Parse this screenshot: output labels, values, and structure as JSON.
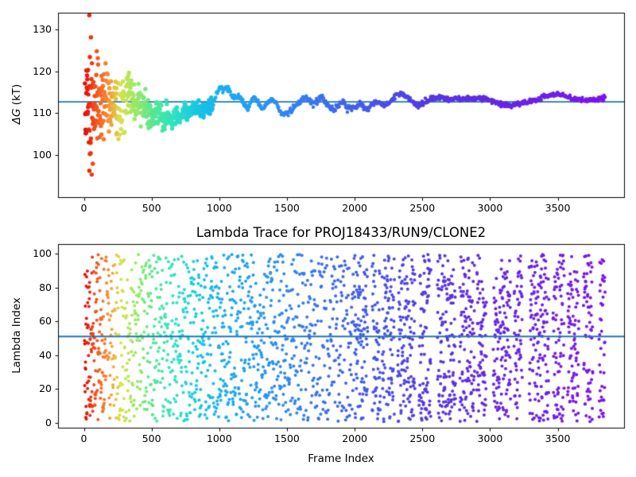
{
  "figure": {
    "background": "#ffffff",
    "text_color": "#000000"
  },
  "chart_data": [
    {
      "type": "scatter",
      "name": "dg_convergence_trace",
      "ylabel": "ΔG (kT)",
      "ylabel_symbol": "ΔG",
      "ylabel_units": " (kT)",
      "xlim": [
        -191,
        3990
      ],
      "ylim": [
        89.9,
        134.0
      ],
      "xticks": [
        0,
        500,
        1000,
        1500,
        2000,
        2500,
        3000,
        3500
      ],
      "xtick_labels": [
        "0",
        "500",
        "1000",
        "1500",
        "2000",
        "2500",
        "3000",
        "3500"
      ],
      "yticks": [
        100,
        110,
        120,
        130
      ],
      "ytick_labels": [
        "100",
        "110",
        "120",
        "130"
      ],
      "grid": false,
      "legend": "none",
      "hline": 112.7,
      "hline_color": "#1f77b4",
      "colormap": "red-to-violet rainbow by frame index",
      "frame_max": 3850,
      "colormap_stops": [
        [
          0.0,
          "#e60000"
        ],
        [
          0.02,
          "#f2491b"
        ],
        [
          0.045,
          "#f8872f"
        ],
        [
          0.07,
          "#d9e14d"
        ],
        [
          0.1,
          "#9ae865"
        ],
        [
          0.135,
          "#55e794"
        ],
        [
          0.175,
          "#2ee2c4"
        ],
        [
          0.22,
          "#17c6e3"
        ],
        [
          0.27,
          "#1dacf0"
        ],
        [
          0.35,
          "#2b93f2"
        ],
        [
          0.45,
          "#3a73ee"
        ],
        [
          0.55,
          "#4458e9"
        ],
        [
          0.66,
          "#5638e2"
        ],
        [
          0.78,
          "#6527e4"
        ],
        [
          0.9,
          "#7020e8"
        ],
        [
          1.0,
          "#7d13f0"
        ]
      ],
      "outliers": [
        [
          40,
          133.4
        ],
        [
          52,
          128.1
        ],
        [
          95,
          124.8
        ],
        [
          18,
          120.2
        ],
        [
          24,
          120.1
        ],
        [
          30,
          120.3
        ],
        [
          15,
          110.0
        ],
        [
          21,
          110.1
        ],
        [
          27,
          109.8
        ],
        [
          44,
          100.2
        ],
        [
          50,
          100.4
        ],
        [
          36,
          103.0
        ],
        [
          58,
          95.3
        ],
        [
          66,
          97.9
        ],
        [
          105,
          121.6
        ],
        [
          130,
          118.9
        ],
        [
          160,
          121.9
        ],
        [
          200,
          117.6
        ],
        [
          240,
          104.9
        ],
        [
          185,
          105.6
        ],
        [
          75,
          106.2
        ],
        [
          85,
          116.4
        ]
      ],
      "mean_curve": [
        [
          0,
          112.5
        ],
        [
          150,
          112.4
        ],
        [
          250,
          111.8
        ],
        [
          300,
          112.6
        ],
        [
          330,
          114.4
        ],
        [
          365,
          113.2
        ],
        [
          420,
          111.0
        ],
        [
          470,
          110.4
        ],
        [
          500,
          110.3
        ],
        [
          530,
          109.2
        ],
        [
          560,
          110.8
        ],
        [
          590,
          107.5
        ],
        [
          620,
          109.8
        ],
        [
          650,
          107.6
        ],
        [
          680,
          110.2
        ],
        [
          710,
          108.6
        ],
        [
          740,
          110.8
        ],
        [
          770,
          110.1
        ],
        [
          800,
          110.6
        ],
        [
          830,
          111.5
        ],
        [
          860,
          110.4
        ],
        [
          890,
          110.9
        ],
        [
          920,
          111.2
        ],
        [
          950,
          111.5
        ],
        [
          975,
          114.3
        ],
        [
          1000,
          116.0
        ],
        [
          1030,
          115.7
        ],
        [
          1060,
          116.2
        ],
        [
          1090,
          114.3
        ],
        [
          1120,
          113.6
        ],
        [
          1150,
          113.9
        ],
        [
          1180,
          112.4
        ],
        [
          1210,
          110.9
        ],
        [
          1235,
          113.0
        ],
        [
          1260,
          113.9
        ],
        [
          1290,
          112.2
        ],
        [
          1320,
          110.9
        ],
        [
          1350,
          112.2
        ],
        [
          1385,
          113.4
        ],
        [
          1420,
          112.6
        ],
        [
          1455,
          110.1
        ],
        [
          1490,
          109.7
        ],
        [
          1525,
          110.3
        ],
        [
          1560,
          111.9
        ],
        [
          1600,
          112.7
        ],
        [
          1640,
          113.8
        ],
        [
          1670,
          112.9
        ],
        [
          1695,
          112.1
        ],
        [
          1725,
          113.1
        ],
        [
          1755,
          113.9
        ],
        [
          1790,
          112.5
        ],
        [
          1825,
          111.0
        ],
        [
          1855,
          110.7
        ],
        [
          1885,
          112.0
        ],
        [
          1915,
          112.7
        ],
        [
          1945,
          111.5
        ],
        [
          1975,
          111.0
        ],
        [
          2010,
          111.3
        ],
        [
          2040,
          112.3
        ],
        [
          2070,
          111.3
        ],
        [
          2100,
          111.1
        ],
        [
          2130,
          111.9
        ],
        [
          2160,
          112.6
        ],
        [
          2190,
          112.3
        ],
        [
          2220,
          111.7
        ],
        [
          2250,
          112.3
        ],
        [
          2280,
          113.5
        ],
        [
          2310,
          114.3
        ],
        [
          2345,
          114.5
        ],
        [
          2380,
          114.1
        ],
        [
          2410,
          113.3
        ],
        [
          2440,
          112.2
        ],
        [
          2470,
          111.9
        ],
        [
          2500,
          112.2
        ],
        [
          2530,
          112.9
        ],
        [
          2565,
          113.5
        ],
        [
          2600,
          113.6
        ],
        [
          2640,
          113.8
        ],
        [
          2680,
          113.4
        ],
        [
          2715,
          113.2
        ],
        [
          2750,
          113.5
        ],
        [
          2790,
          113.3
        ],
        [
          2830,
          113.6
        ],
        [
          2870,
          113.3
        ],
        [
          2910,
          113.6
        ],
        [
          2950,
          113.5
        ],
        [
          2990,
          113.1
        ],
        [
          3030,
          112.7
        ],
        [
          3070,
          112.3
        ],
        [
          3110,
          111.9
        ],
        [
          3150,
          111.7
        ],
        [
          3190,
          112.1
        ],
        [
          3230,
          112.4
        ],
        [
          3270,
          112.6
        ],
        [
          3310,
          112.9
        ],
        [
          3360,
          113.3
        ],
        [
          3410,
          114.0
        ],
        [
          3460,
          114.4
        ],
        [
          3510,
          114.4
        ],
        [
          3560,
          114.0
        ],
        [
          3610,
          113.5
        ],
        [
          3660,
          113.1
        ],
        [
          3700,
          112.9
        ],
        [
          3740,
          113.0
        ],
        [
          3790,
          113.3
        ],
        [
          3850,
          113.6
        ]
      ],
      "spread_steps": [
        [
          60,
          6.8
        ],
        [
          200,
          4.6
        ],
        [
          350,
          3.1
        ],
        [
          500,
          2.1
        ],
        [
          700,
          1.3
        ],
        [
          950,
          0.8
        ],
        [
          99999,
          0.32
        ]
      ],
      "scatter_step_early": 1.9,
      "line_start": 950,
      "line_step": 4,
      "line_noise": 0.3,
      "value_clip": [
        95.0,
        133.4
      ]
    },
    {
      "type": "scatter",
      "name": "lambda_trace",
      "title": "Lambda Trace for PROJ18433/RUN9/CLONE2",
      "xlabel": "Frame Index",
      "ylabel": "Lambda Index",
      "xlim": [
        -191,
        3990
      ],
      "ylim": [
        -3.0,
        105.7
      ],
      "xticks": [
        0,
        500,
        1000,
        1500,
        2000,
        2500,
        3000,
        3500
      ],
      "xtick_labels": [
        "0",
        "500",
        "1000",
        "1500",
        "2000",
        "2500",
        "3000",
        "3500"
      ],
      "yticks": [
        0,
        20,
        40,
        60,
        80,
        100
      ],
      "ytick_labels": [
        "0",
        "20",
        "40",
        "60",
        "80",
        "100"
      ],
      "grid": false,
      "legend": "none",
      "hline": 51,
      "hline_color": "#1f77b4",
      "lambda_range": [
        0.5,
        99.5
      ],
      "segments": [
        [
          5,
          55,
          1.0
        ],
        [
          55,
          150,
          1.15
        ],
        [
          150,
          1500,
          1.6
        ],
        [
          1500,
          2000,
          1.9
        ]
      ],
      "bursts": {
        "from": 2000,
        "to": 3850,
        "on_min": 50,
        "on_max": 150,
        "off_min": 12,
        "off_max": 55,
        "step": 1.1
      }
    }
  ]
}
